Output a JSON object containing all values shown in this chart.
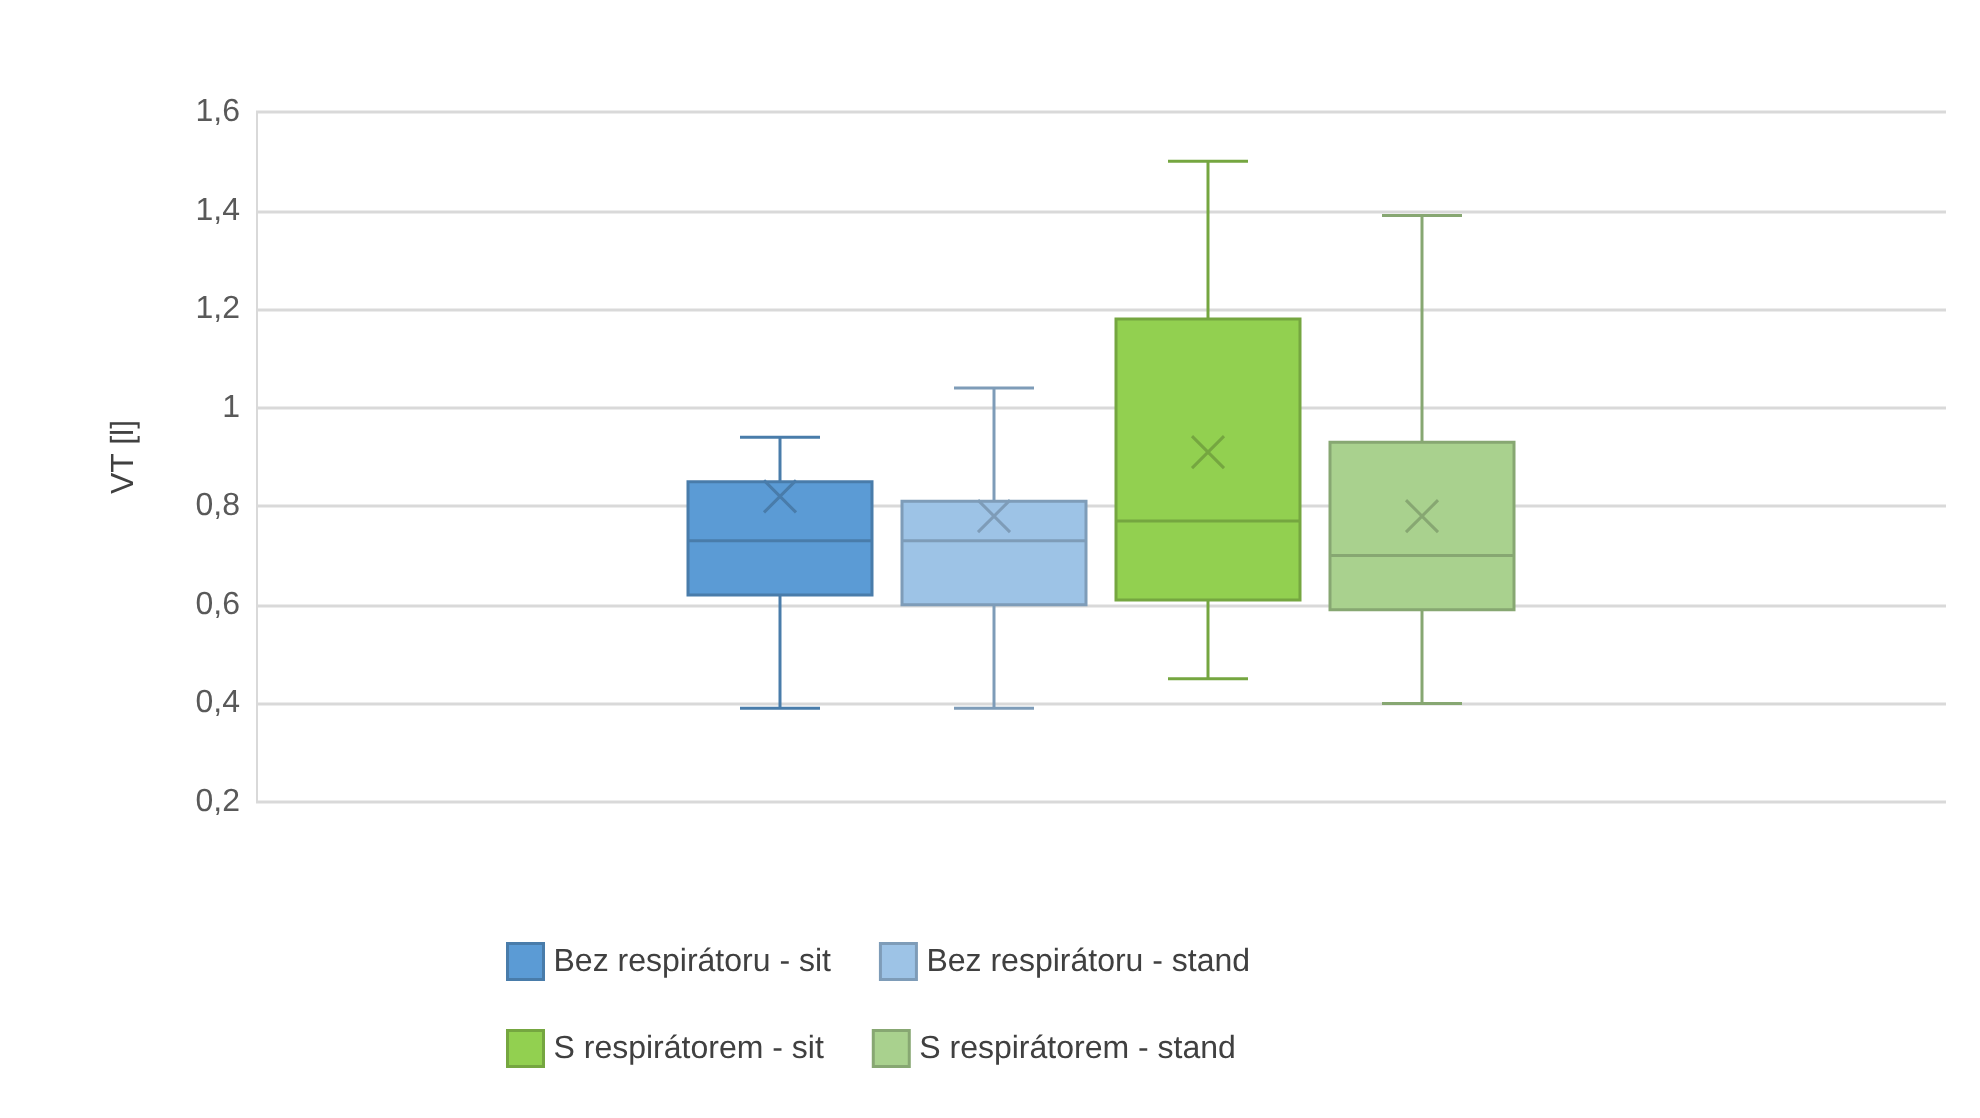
{
  "chart_data": {
    "type": "box",
    "ylabel": "VT [l]",
    "categories": [
      null
    ],
    "series": [
      {
        "name": "Bez respirátoru - sit",
        "color": "#5b9bd5",
        "boxes": [
          {
            "low": 0.39,
            "q1": 0.62,
            "median": 0.73,
            "q3": 0.85,
            "high": 0.94,
            "mean": 0.82
          }
        ]
      },
      {
        "name": "Bez respirátoru - stand",
        "color": "#9dc3e6",
        "boxes": [
          {
            "low": 0.39,
            "q1": 0.6,
            "median": 0.73,
            "q3": 0.81,
            "high": 1.04,
            "mean": 0.78
          }
        ]
      },
      {
        "name": "S respirátorem - sit",
        "color": "#92d050",
        "boxes": [
          {
            "low": 0.45,
            "q1": 0.61,
            "median": 0.77,
            "q3": 1.18,
            "high": 1.5,
            "mean": 0.91
          }
        ]
      },
      {
        "name": "S respirátorem - stand",
        "color": "#a9d18e",
        "boxes": [
          {
            "low": 0.4,
            "q1": 0.59,
            "median": 0.7,
            "q3": 0.93,
            "high": 1.39,
            "mean": 0.78
          }
        ]
      }
    ],
    "ylim": [
      0.2,
      1.6
    ],
    "yticks": [
      {
        "value": 0.2,
        "label": "0,2"
      },
      {
        "value": 0.4,
        "label": "0,4"
      },
      {
        "value": 0.6,
        "label": "0,6"
      },
      {
        "value": 0.8,
        "label": "0,8"
      },
      {
        "value": 1,
        "label": "1"
      },
      {
        "value": 1.2,
        "label": "1,2"
      },
      {
        "value": 1.4,
        "label": "1,4"
      },
      {
        "value": 1.6,
        "label": "1,6"
      }
    ],
    "grid": "y",
    "legend": "bottom",
    "marker": "cross"
  }
}
